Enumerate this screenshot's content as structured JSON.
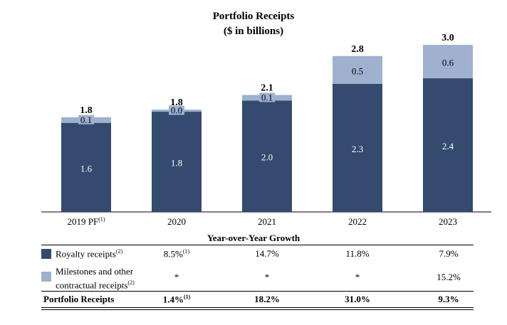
{
  "chart_data": {
    "type": "bar",
    "stacked": true,
    "title": "Portfolio Receipts",
    "subtitle": "($ in billions)",
    "categories": [
      "2019 PF",
      "2020",
      "2021",
      "2022",
      "2023"
    ],
    "category_footnotes": [
      "(1)",
      "",
      "",
      "",
      ""
    ],
    "series": [
      {
        "name": "Royalty receipts",
        "values": [
          1.6,
          1.8,
          2.0,
          2.3,
          2.4
        ],
        "labels": [
          "1.6",
          "1.8",
          "2.0",
          "2.3",
          "2.4"
        ],
        "color": "#344a6e"
      },
      {
        "name": "Milestones and other contractual receipts",
        "values": [
          0.1,
          0.0,
          0.1,
          0.5,
          0.6
        ],
        "labels": [
          "0.1",
          "0.0",
          "0.1",
          "0.5",
          "0.6"
        ],
        "color": "#9fb1cf"
      }
    ],
    "totals": [
      "1.8",
      "1.8",
      "2.1",
      "2.8",
      "3.0"
    ],
    "ylim": [
      0,
      3.2
    ]
  },
  "yoy": {
    "title": "Year-over-Year Growth",
    "rows": [
      {
        "label": "Royalty receipts",
        "footnote": "(2)",
        "values": [
          "8.5%",
          "14.7%",
          "11.8%",
          "7.9%"
        ],
        "value_footnotes": [
          "(1)",
          "",
          "",
          ""
        ]
      },
      {
        "label_line1": "Milestones and other",
        "label_line2": "contractual receipts",
        "footnote": "(2)",
        "values": [
          "*",
          "*",
          "*",
          "15.2%"
        ]
      },
      {
        "label": "Portfolio Receipts",
        "values": [
          "1.4%",
          "18.2%",
          "31.0%",
          "9.3%"
        ],
        "value_footnotes": [
          "(1)",
          "",
          "",
          ""
        ]
      }
    ]
  }
}
